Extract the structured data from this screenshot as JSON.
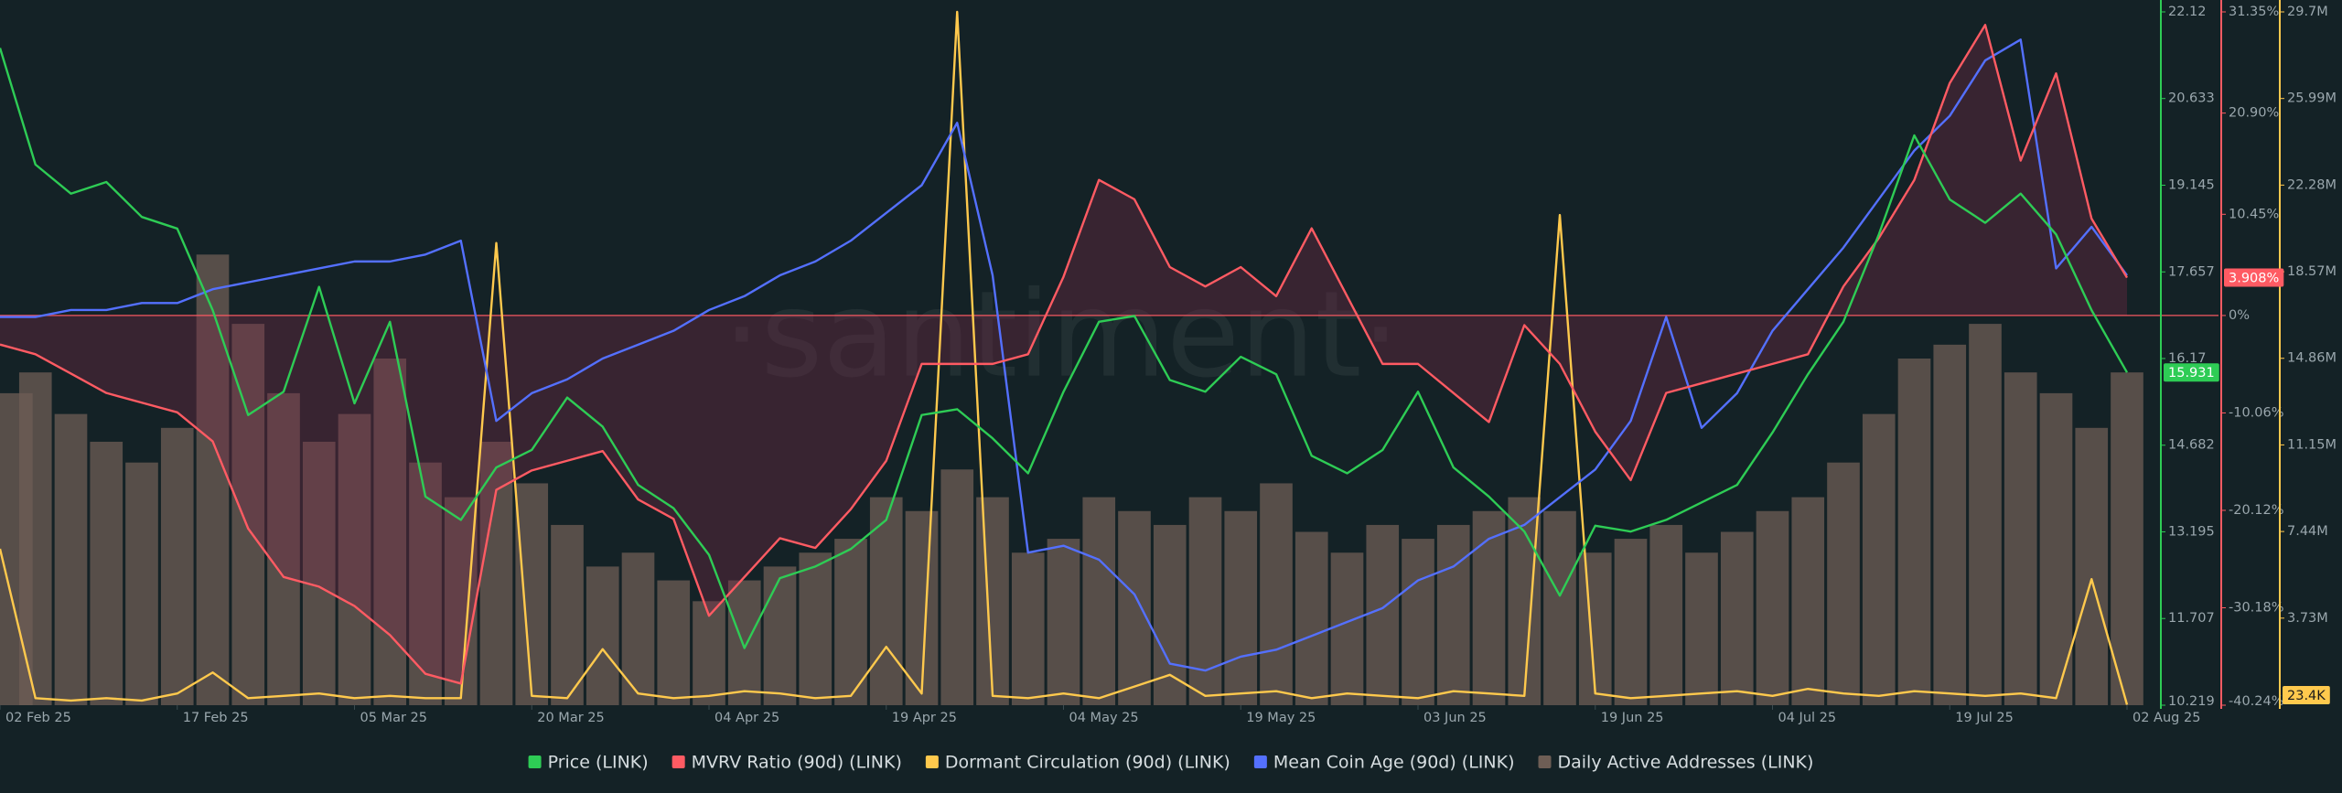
{
  "chart_data": {
    "type": "line",
    "watermark": "·santiment·",
    "xticks": [
      "02 Feb 25",
      "17 Feb 25",
      "05 Mar 25",
      "20 Mar 25",
      "04 Apr 25",
      "19 Apr 25",
      "04 May 25",
      "19 May 25",
      "03 Jun 25",
      "19 Jun 25",
      "04 Jul 25",
      "19 Jul 25",
      "02 Aug 25"
    ],
    "ylim": [
      10.219,
      22.12
    ],
    "yticks": [
      22.12,
      20.633,
      19.145,
      17.657,
      16.17,
      14.682,
      13.195,
      11.707,
      10.219
    ],
    "y2lim": [
      -40.24,
      31.35
    ],
    "y2ticks": [
      {
        "value": 31.35,
        "label": "31.35%"
      },
      {
        "value": 20.9,
        "label": "20.90%"
      },
      {
        "value": 10.45,
        "label": "10.45%"
      },
      {
        "value": 0,
        "label": "0%"
      },
      {
        "value": -10.06,
        "label": "-10.06%"
      },
      {
        "value": -20.12,
        "label": "-20.12%"
      },
      {
        "value": -30.18,
        "label": "-30.18%"
      },
      {
        "value": -40.24,
        "label": "-40.24%"
      }
    ],
    "y3lim": [
      0,
      29.7
    ],
    "y3ticks": [
      {
        "value": 29.7,
        "label": "29.7M"
      },
      {
        "value": 25.99,
        "label": "25.99M"
      },
      {
        "value": 22.28,
        "label": "22.28M"
      },
      {
        "value": 18.57,
        "label": "18.57M"
      },
      {
        "value": 14.86,
        "label": "14.86M"
      },
      {
        "value": 11.15,
        "label": "11.15M"
      },
      {
        "value": 7.44,
        "label": "7.44M"
      },
      {
        "value": 3.73,
        "label": "3.73M"
      }
    ],
    "y4lim": [
      0,
      100
    ],
    "y5lim": [
      0,
      100
    ],
    "series": [
      {
        "name": "Price (LINK)",
        "color": "#2ecc55",
        "axis": "y",
        "current_label": "15.931",
        "values": [
          21.5,
          19.5,
          19.0,
          19.2,
          18.6,
          18.4,
          17.0,
          15.2,
          15.6,
          17.4,
          15.4,
          16.8,
          13.8,
          13.4,
          14.3,
          14.6,
          15.5,
          15.0,
          14.0,
          13.6,
          12.8,
          11.2,
          12.4,
          12.6,
          12.9,
          13.4,
          15.2,
          15.3,
          14.8,
          14.2,
          15.6,
          16.8,
          16.9,
          15.8,
          15.6,
          16.2,
          15.9,
          14.5,
          14.2,
          14.6,
          15.6,
          14.3,
          13.8,
          13.2,
          12.1,
          13.3,
          13.2,
          13.4,
          13.7,
          14.0,
          14.9,
          15.9,
          16.8,
          18.3,
          20.0,
          18.9,
          18.5,
          19.0,
          18.3,
          17.0,
          15.931
        ]
      },
      {
        "name": "MVRV Ratio (90d) (LINK)",
        "color": "#ff5b63",
        "axis": "y2",
        "current_label": "3.908%",
        "values": [
          -3,
          -4,
          -6,
          -8,
          -9,
          -10,
          -13,
          -22,
          -27,
          -28,
          -30,
          -33,
          -37,
          -38,
          -18,
          -16,
          -15,
          -14,
          -19,
          -21,
          -31,
          -27,
          -23,
          -24,
          -20,
          -15,
          -5,
          -5,
          -5,
          -4,
          4,
          14,
          12,
          5,
          3,
          5,
          2,
          9,
          2,
          -5,
          -5,
          -8,
          -11,
          -1,
          -5,
          -12,
          -17,
          -8,
          -7,
          -6,
          -5,
          -4,
          3,
          8,
          14,
          24,
          30,
          16,
          25,
          10,
          3.908
        ]
      },
      {
        "name": "Dormant Circulation (90d) (LINK)",
        "color": "#ffc94d",
        "axis": "y3",
        "current_label": "23.4K",
        "values": [
          6.7,
          0.3,
          0.2,
          0.3,
          0.2,
          0.5,
          1.4,
          0.3,
          0.4,
          0.5,
          0.3,
          0.4,
          0.3,
          0.3,
          19.8,
          0.4,
          0.3,
          2.4,
          0.5,
          0.3,
          0.4,
          0.6,
          0.5,
          0.3,
          0.4,
          2.5,
          0.5,
          29.7,
          0.4,
          0.3,
          0.5,
          0.3,
          0.8,
          1.3,
          0.4,
          0.5,
          0.6,
          0.3,
          0.5,
          0.4,
          0.3,
          0.6,
          0.5,
          0.4,
          21.0,
          0.5,
          0.3,
          0.4,
          0.5,
          0.6,
          0.4,
          0.7,
          0.5,
          0.4,
          0.6,
          0.5,
          0.4,
          0.5,
          0.3,
          5.4,
          0.0234
        ]
      },
      {
        "name": "Mean Coin Age (90d) (LINK)",
        "color": "#5470ff",
        "axis": "y4",
        "values": [
          56,
          56,
          57,
          57,
          58,
          58,
          60,
          61,
          62,
          63,
          64,
          64,
          65,
          67,
          41,
          45,
          47,
          50,
          52,
          54,
          57,
          59,
          62,
          64,
          67,
          71,
          75,
          84,
          62,
          22,
          23,
          21,
          16,
          6,
          5,
          7,
          8,
          10,
          12,
          14,
          18,
          20,
          24,
          26,
          30,
          34,
          41,
          56,
          40,
          45,
          54,
          60,
          66,
          73,
          80,
          85,
          93,
          96,
          63,
          69,
          62
        ]
      },
      {
        "name": "Daily Active Addresses (LINK)",
        "color": "#6e5e55",
        "axis": "y5",
        "values": [
          45,
          48,
          42,
          38,
          35,
          40,
          65,
          55,
          45,
          38,
          42,
          50,
          35,
          30,
          38,
          32,
          26,
          20,
          22,
          18,
          15,
          18,
          20,
          22,
          24,
          30,
          28,
          34,
          30,
          22,
          24,
          30,
          28,
          26,
          30,
          28,
          32,
          25,
          22,
          26,
          24,
          26,
          28,
          30,
          28,
          22,
          24,
          26,
          22,
          25,
          28,
          30,
          35,
          42,
          50,
          52,
          55,
          48,
          45,
          40,
          48
        ]
      }
    ]
  }
}
